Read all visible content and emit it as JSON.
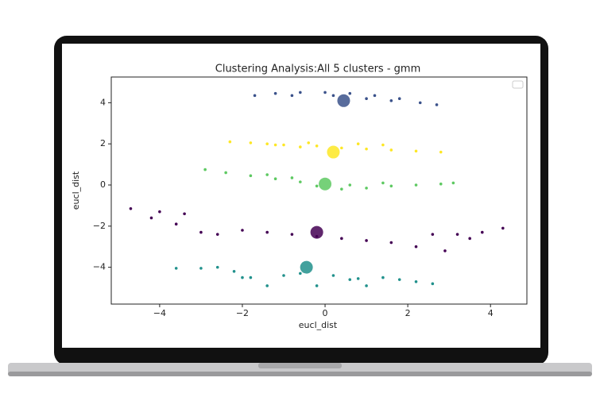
{
  "chart_data": {
    "type": "scatter",
    "title": "Clustering Analysis:All 5 clusters - gmm",
    "xlabel": "eucl_dist",
    "ylabel": "eucl_dist",
    "xlim": [
      -5.17,
      4.88
    ],
    "ylim": [
      -5.79,
      5.25
    ],
    "xticks": [
      {
        "value": -4,
        "label": "−4"
      },
      {
        "value": -2,
        "label": "−2"
      },
      0,
      2,
      4
    ],
    "yticks": [
      {
        "value": -4,
        "label": "−4"
      },
      {
        "value": -2,
        "label": "−2"
      },
      0,
      2,
      4
    ],
    "legend": "upper right",
    "series": [
      {
        "color": "#3b528b",
        "marker_size": 1.8,
        "alpha": 1,
        "x": [
          -1.7,
          -1.2,
          -0.6,
          0,
          0.6,
          1.2,
          1.8,
          2.3,
          2.7,
          -0.8,
          0.2,
          1.0,
          1.6
        ],
        "y": [
          4.35,
          4.45,
          4.5,
          4.5,
          4.45,
          4.35,
          4.2,
          4.0,
          3.9,
          4.35,
          4.35,
          4.2,
          4.1
        ]
      },
      {
        "color": "#fde725",
        "marker_size": 1.8,
        "alpha": 1,
        "x": [
          -2.3,
          -1.8,
          -1.4,
          -1.0,
          -0.6,
          -0.2,
          0.4,
          1.0,
          1.6,
          2.2,
          2.8,
          -1.2,
          -0.4,
          0.8,
          1.4
        ],
        "y": [
          2.1,
          2.05,
          2.0,
          1.95,
          1.85,
          1.9,
          1.8,
          1.75,
          1.7,
          1.65,
          1.6,
          1.95,
          2.05,
          2.0,
          1.95
        ]
      },
      {
        "color": "#5ec962",
        "marker_size": 1.8,
        "alpha": 1,
        "x": [
          -2.9,
          -2.4,
          -1.8,
          -1.2,
          -0.6,
          -0.2,
          0.4,
          1.0,
          1.6,
          2.2,
          2.8,
          3.1,
          -1.4,
          -0.8,
          0.6,
          1.4
        ],
        "y": [
          0.75,
          0.6,
          0.45,
          0.3,
          0.15,
          -0.05,
          -0.2,
          -0.15,
          -0.05,
          0.0,
          0.05,
          0.1,
          0.5,
          0.35,
          0.0,
          0.1
        ]
      },
      {
        "color": "#440154",
        "marker_size": 1.8,
        "alpha": 1,
        "x": [
          -4.7,
          -4.0,
          -3.4,
          -4.2,
          -3.6,
          -3.0,
          -2.6,
          -2.0,
          -1.4,
          -0.8,
          -0.2,
          0.4,
          1.0,
          1.6,
          2.2,
          2.6,
          3.2,
          3.8,
          3.5,
          2.9,
          4.3
        ],
        "y": [
          -1.15,
          -1.3,
          -1.4,
          -1.6,
          -1.9,
          -2.3,
          -2.4,
          -2.2,
          -2.3,
          -2.4,
          -2.5,
          -2.6,
          -2.7,
          -2.8,
          -3.0,
          -2.4,
          -2.4,
          -2.3,
          -2.6,
          -3.2,
          -2.1
        ]
      },
      {
        "color": "#21918c",
        "marker_size": 1.8,
        "alpha": 1,
        "x": [
          -3.6,
          -3.0,
          -2.6,
          -2.2,
          -1.8,
          -1.4,
          -1.0,
          -0.6,
          -0.2,
          0.2,
          0.6,
          1.0,
          1.4,
          1.8,
          2.2,
          2.6,
          -2.0,
          0.8
        ],
        "y": [
          -4.05,
          -4.05,
          -4.0,
          -4.2,
          -4.5,
          -4.9,
          -4.4,
          -4.3,
          -4.9,
          -4.4,
          -4.6,
          -4.9,
          -4.5,
          -4.6,
          -4.7,
          -4.8,
          -4.5,
          -4.55
        ]
      },
      {
        "color": [
          "#3b528b",
          "#fde725",
          "#5ec962",
          "#440154",
          "#21918c"
        ],
        "marker_size": 8,
        "alpha": 0.85,
        "x": [
          0.45,
          0.2,
          0.0,
          -0.2,
          -0.45
        ],
        "y": [
          4.1,
          1.6,
          0.05,
          -2.3,
          -4.0
        ]
      }
    ]
  }
}
